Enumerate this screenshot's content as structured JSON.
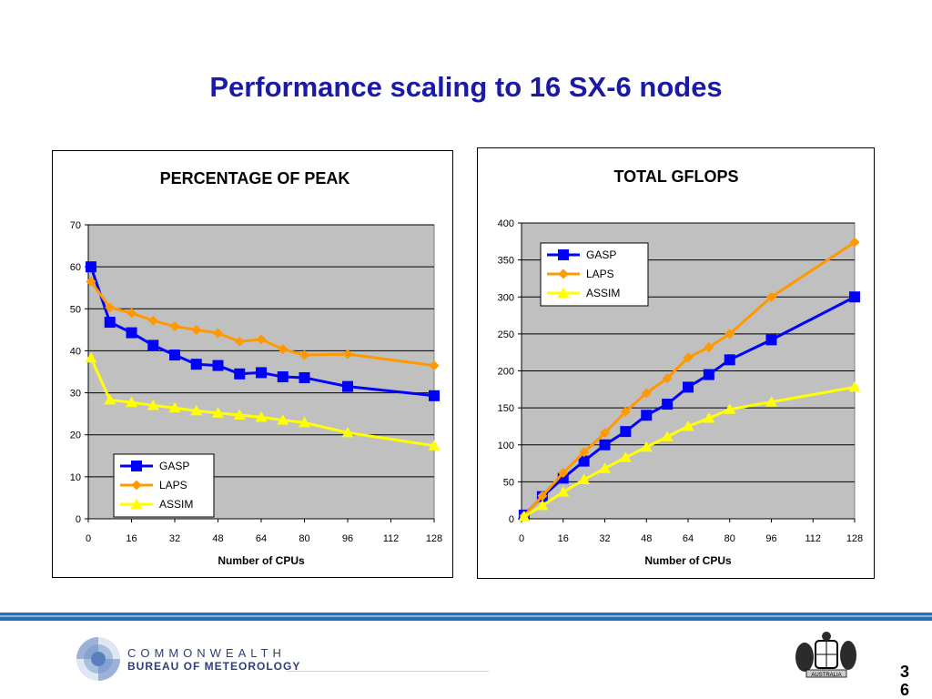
{
  "slide": {
    "title": "Performance scaling to 16 SX-6 nodes",
    "page_number": "36",
    "footer": {
      "org_line1": "COMMONWEALTH",
      "org_line2": "BUREAU OF METEOROLOGY",
      "crest_text": "AUSTRALIA"
    }
  },
  "colors": {
    "title": "#1a1aa6",
    "plot_bg": "#c0c0c0",
    "GASP": "#0000ff",
    "LAPS": "#ff9900",
    "ASSIM": "#ffff00"
  },
  "chart_data": [
    {
      "type": "line",
      "title": "PERCENTAGE OF PEAK",
      "xlabel": "Number of CPUs",
      "ylabel": "",
      "xlim": [
        0,
        128
      ],
      "ylim": [
        0,
        70
      ],
      "xticks": [
        0,
        16,
        32,
        48,
        64,
        80,
        96,
        112,
        128
      ],
      "yticks": [
        0,
        10,
        20,
        30,
        40,
        50,
        60,
        70
      ],
      "grid": true,
      "legend": "bottom-left",
      "series": [
        {
          "name": "GASP",
          "marker": "square",
          "x": [
            1,
            8,
            16,
            24,
            32,
            40,
            48,
            56,
            64,
            72,
            80,
            96,
            128
          ],
          "y": [
            60,
            46.8,
            44.3,
            41.3,
            39,
            36.8,
            36.5,
            34.5,
            34.8,
            33.8,
            33.6,
            31.5,
            29.3
          ]
        },
        {
          "name": "LAPS",
          "marker": "diamond",
          "x": [
            1,
            8,
            16,
            24,
            32,
            40,
            48,
            56,
            64,
            72,
            80,
            96,
            128
          ],
          "y": [
            56.5,
            50.3,
            49,
            47.2,
            45.8,
            45,
            44.2,
            42.2,
            42.7,
            40.4,
            39,
            39.2,
            36.5
          ]
        },
        {
          "name": "ASSIM",
          "marker": "triangle",
          "x": [
            1,
            8,
            16,
            24,
            32,
            40,
            48,
            56,
            64,
            72,
            80,
            96,
            128
          ],
          "y": [
            38.3,
            28.3,
            27.7,
            27,
            26.4,
            25.7,
            25.2,
            24.7,
            24.2,
            23.5,
            22.9,
            20.5,
            17.4
          ]
        }
      ]
    },
    {
      "type": "line",
      "title": "TOTAL GFLOPS",
      "xlabel": "Number of CPUs",
      "ylabel": "",
      "xlim": [
        0,
        128
      ],
      "ylim": [
        0,
        400
      ],
      "xticks": [
        0,
        16,
        32,
        48,
        64,
        80,
        96,
        112,
        128
      ],
      "yticks": [
        0,
        50,
        100,
        150,
        200,
        250,
        300,
        350,
        400
      ],
      "grid": true,
      "legend": "top-left",
      "series": [
        {
          "name": "GASP",
          "marker": "square",
          "x": [
            1,
            8,
            16,
            24,
            32,
            40,
            48,
            56,
            64,
            72,
            80,
            96,
            128
          ],
          "y": [
            5,
            30,
            55,
            78,
            100,
            118,
            140,
            155,
            178,
            195,
            215,
            242,
            300
          ]
        },
        {
          "name": "LAPS",
          "marker": "diamond",
          "x": [
            1,
            8,
            16,
            24,
            32,
            40,
            48,
            56,
            64,
            72,
            80,
            96,
            128
          ],
          "y": [
            4,
            31,
            62,
            90,
            116,
            145,
            170,
            190,
            218,
            232,
            250,
            300,
            374
          ]
        },
        {
          "name": "ASSIM",
          "marker": "triangle",
          "x": [
            1,
            8,
            16,
            24,
            32,
            40,
            48,
            56,
            64,
            72,
            80,
            96,
            128
          ],
          "y": [
            3,
            18,
            36,
            53,
            68,
            83,
            97,
            111,
            125,
            136,
            148,
            158,
            178
          ]
        }
      ]
    }
  ]
}
